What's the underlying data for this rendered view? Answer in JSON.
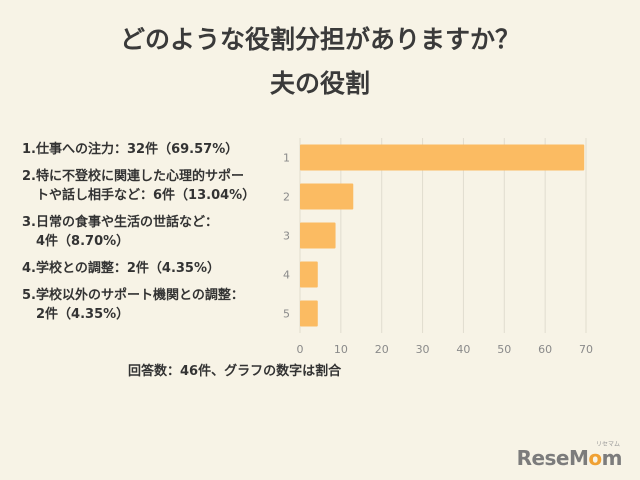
{
  "title_line1": "どのような役割分担がありますか？",
  "title_line2": "夫の役割",
  "legend": [
    {
      "line1": "1.仕事への注力：32件（69.57%）",
      "line2": ""
    },
    {
      "line1": "2.特に不登校に関連した心理的サポー",
      "line2": "トや話し相手など：6件（13.04%）"
    },
    {
      "line1": "3.日常の食事や生活の世話など：",
      "line2": "4件（8.70%）"
    },
    {
      "line1": "4.学校との調整：2件（4.35%）",
      "line2": ""
    },
    {
      "line1": "5.学校以外のサポート機関との調整：",
      "line2": "2件（4.35%）"
    }
  ],
  "footnote": "回答数：46件、グラフの数字は割合",
  "logo": {
    "text_before": "ReseM",
    "text_o": "o",
    "text_after": "m",
    "small": "リセマム"
  },
  "colors": {
    "bar": "#fbbb62",
    "grid": "#e0dccf",
    "axis_text": "#8a8a8a"
  },
  "chart_data": {
    "type": "bar",
    "orientation": "horizontal",
    "categories": [
      "1",
      "2",
      "3",
      "4",
      "5"
    ],
    "values": [
      69.57,
      13.04,
      8.7,
      4.35,
      4.35
    ],
    "xlim": [
      0,
      70
    ],
    "xticks": [
      0,
      10,
      20,
      30,
      40,
      50,
      60,
      70
    ],
    "grid": true,
    "title": "",
    "xlabel": "",
    "ylabel": ""
  }
}
